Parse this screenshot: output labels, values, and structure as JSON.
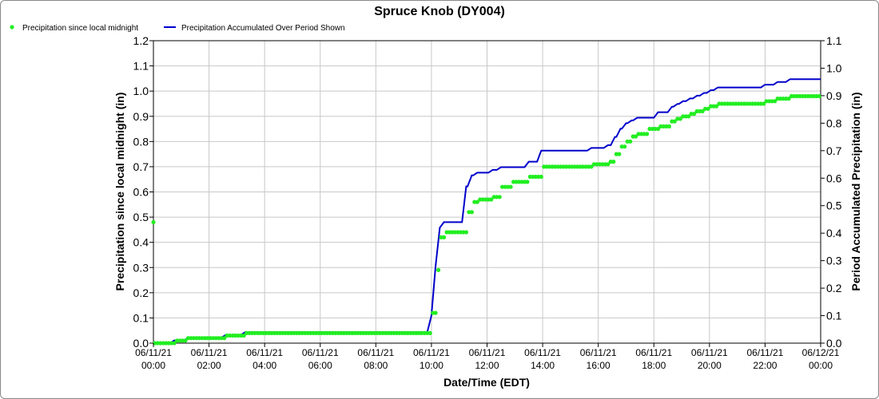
{
  "chart_data": {
    "type": "line",
    "title": "Spruce Knob (DY004)",
    "xlabel": "Date/Time (EDT)",
    "ylabel_left": "Precipitation since local midnight (in)",
    "ylabel_right": "Period Accumulated Precipitation (in)",
    "ylim_left": [
      0,
      1.2
    ],
    "ylim_right": [
      0,
      1.1
    ],
    "xlim_hours": [
      0,
      24
    ],
    "grid": true,
    "legend_position": "top-left",
    "y_ticks_left": [
      "0.0",
      "0.1",
      "0.2",
      "0.3",
      "0.4",
      "0.5",
      "0.6",
      "0.7",
      "0.8",
      "0.9",
      "1.0",
      "1.1",
      "1.2"
    ],
    "y_ticks_right": [
      "0.0",
      "0.1",
      "0.2",
      "0.3",
      "0.4",
      "0.5",
      "0.6",
      "0.7",
      "0.8",
      "0.9",
      "1.0",
      "1.1"
    ],
    "x_ticks": [
      {
        "date": "06/11/21",
        "time": "00:00"
      },
      {
        "date": "06/11/21",
        "time": "02:00"
      },
      {
        "date": "06/11/21",
        "time": "04:00"
      },
      {
        "date": "06/11/21",
        "time": "06:00"
      },
      {
        "date": "06/11/21",
        "time": "08:00"
      },
      {
        "date": "06/11/21",
        "time": "10:00"
      },
      {
        "date": "06/11/21",
        "time": "12:00"
      },
      {
        "date": "06/11/21",
        "time": "14:00"
      },
      {
        "date": "06/11/21",
        "time": "16:00"
      },
      {
        "date": "06/11/21",
        "time": "18:00"
      },
      {
        "date": "06/11/21",
        "time": "20:00"
      },
      {
        "date": "06/11/21",
        "time": "22:00"
      },
      {
        "date": "06/12/21",
        "time": "00:00"
      }
    ],
    "series": [
      {
        "name": "Precipitation since local midnight",
        "color": "#22ee22",
        "marker": "dot",
        "axis": "left",
        "first_point": [
          0,
          0.48
        ],
        "steps": [
          [
            0.05,
            0.0
          ],
          [
            0.75,
            0.01
          ],
          [
            1.25,
            0.02
          ],
          [
            2.6,
            0.03
          ],
          [
            3.3,
            0.04
          ],
          [
            9.85,
            0.04
          ],
          [
            10.0,
            0.12
          ],
          [
            10.15,
            0.29
          ],
          [
            10.3,
            0.42
          ],
          [
            10.45,
            0.44
          ],
          [
            11.25,
            0.52
          ],
          [
            11.45,
            0.56
          ],
          [
            11.65,
            0.57
          ],
          [
            12.2,
            0.58
          ],
          [
            12.5,
            0.62
          ],
          [
            12.9,
            0.64
          ],
          [
            13.5,
            0.66
          ],
          [
            13.95,
            0.7
          ],
          [
            15.75,
            0.71
          ],
          [
            16.35,
            0.72
          ],
          [
            16.6,
            0.75
          ],
          [
            16.8,
            0.78
          ],
          [
            17.0,
            0.8
          ],
          [
            17.2,
            0.82
          ],
          [
            17.4,
            0.83
          ],
          [
            17.75,
            0.85
          ],
          [
            18.15,
            0.86
          ],
          [
            18.65,
            0.88
          ],
          [
            18.85,
            0.89
          ],
          [
            19.05,
            0.9
          ],
          [
            19.3,
            0.91
          ],
          [
            19.55,
            0.92
          ],
          [
            19.8,
            0.93
          ],
          [
            20.05,
            0.94
          ],
          [
            20.3,
            0.95
          ],
          [
            22.0,
            0.96
          ],
          [
            22.45,
            0.97
          ],
          [
            22.9,
            0.98
          ],
          [
            24.0,
            0.98
          ]
        ]
      },
      {
        "name": "Precipitation Accumulated Over Period Shown",
        "color": "#0000cc",
        "marker": "line",
        "axis": "right",
        "steps": [
          [
            0,
            0.0
          ],
          [
            0.75,
            0.01
          ],
          [
            1.25,
            0.02
          ],
          [
            2.6,
            0.03
          ],
          [
            3.3,
            0.04
          ],
          [
            9.85,
            0.04
          ],
          [
            10.0,
            0.1
          ],
          [
            10.15,
            0.28
          ],
          [
            10.3,
            0.42
          ],
          [
            10.45,
            0.44
          ],
          [
            11.25,
            0.57
          ],
          [
            11.45,
            0.61
          ],
          [
            11.65,
            0.62
          ],
          [
            12.2,
            0.63
          ],
          [
            12.5,
            0.64
          ],
          [
            13.5,
            0.66
          ],
          [
            13.95,
            0.7
          ],
          [
            15.75,
            0.71
          ],
          [
            16.35,
            0.72
          ],
          [
            16.6,
            0.75
          ],
          [
            16.8,
            0.78
          ],
          [
            17.0,
            0.8
          ],
          [
            17.2,
            0.81
          ],
          [
            17.4,
            0.82
          ],
          [
            17.75,
            0.82
          ],
          [
            18.15,
            0.84
          ],
          [
            18.65,
            0.86
          ],
          [
            18.85,
            0.87
          ],
          [
            19.05,
            0.88
          ],
          [
            19.3,
            0.89
          ],
          [
            19.55,
            0.9
          ],
          [
            19.8,
            0.91
          ],
          [
            20.05,
            0.92
          ],
          [
            20.3,
            0.93
          ],
          [
            22.0,
            0.94
          ],
          [
            22.45,
            0.95
          ],
          [
            22.9,
            0.96
          ],
          [
            24.0,
            0.96
          ]
        ]
      }
    ]
  }
}
